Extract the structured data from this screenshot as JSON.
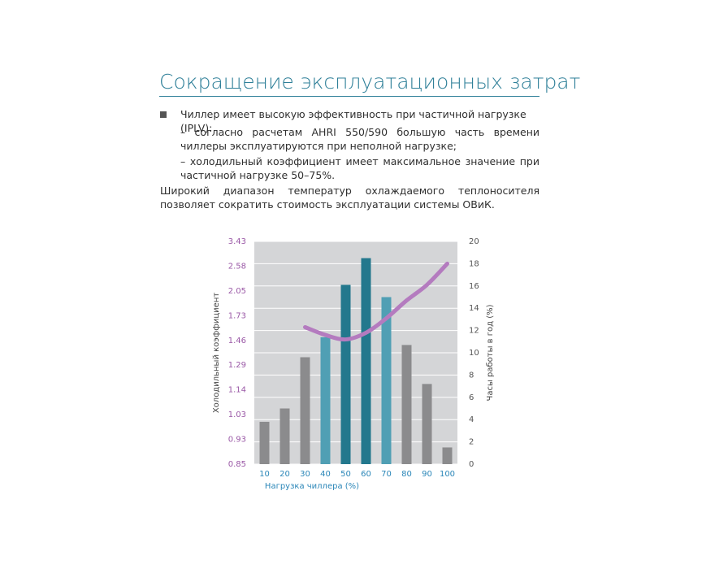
{
  "header": {
    "title": "Сокращение эксплуатационных затрат"
  },
  "bullet": {
    "text": "Чиллер имеет высокую эффективность при частичной нагрузке (IPLV):",
    "items": [
      "– согласно расчетам AHRI 550/590 большую часть времени чиллеры эксплуатируются при неполной нагрузке;",
      "– холодильный коэффициент имеет максимальное значение при частичной нагрузке 50–75%."
    ]
  },
  "paragraph": "Широкий диапазон температур охлаждаемого теплоносителя позволяет сократить стоимость эксплуатации системы ОВиК.",
  "chart_data": {
    "type": "bar_line",
    "x_label": "Нагрузка чиллера (%)",
    "y_label": "Часы работы в год (%)",
    "y2_label": "Холодильный коэффициент",
    "categories": [
      "10",
      "20",
      "30",
      "40",
      "50",
      "60",
      "70",
      "80",
      "90",
      "100"
    ],
    "ylim": [
      0,
      20
    ],
    "yticks": [
      0,
      2,
      4,
      6,
      8,
      10,
      12,
      14,
      16,
      18,
      20
    ],
    "y2ticks": [
      0.85,
      0.93,
      1.03,
      1.14,
      1.29,
      1.46,
      1.73,
      2.05,
      2.58,
      3.43
    ],
    "y2_scale": "ordinal",
    "grid": true,
    "series": [
      {
        "type": "bar",
        "colors": [
          "#8b8b8d",
          "#8b8b8d",
          "#8b8b8d",
          "#509fb4",
          "#23788d",
          "#23788d",
          "#509fb4",
          "#8b8b8d",
          "#8b8b8d",
          "#8b8b8d"
        ],
        "values": [
          3.8,
          5.0,
          9.6,
          11.4,
          16.1,
          18.5,
          15.0,
          10.7,
          7.2,
          1.5
        ]
      },
      {
        "type": "line",
        "color": "#b47bbf",
        "values": [
          null,
          null,
          12.3,
          11.6,
          11.2,
          11.8,
          13.1,
          14.7,
          16.1,
          18.0
        ]
      }
    ]
  }
}
